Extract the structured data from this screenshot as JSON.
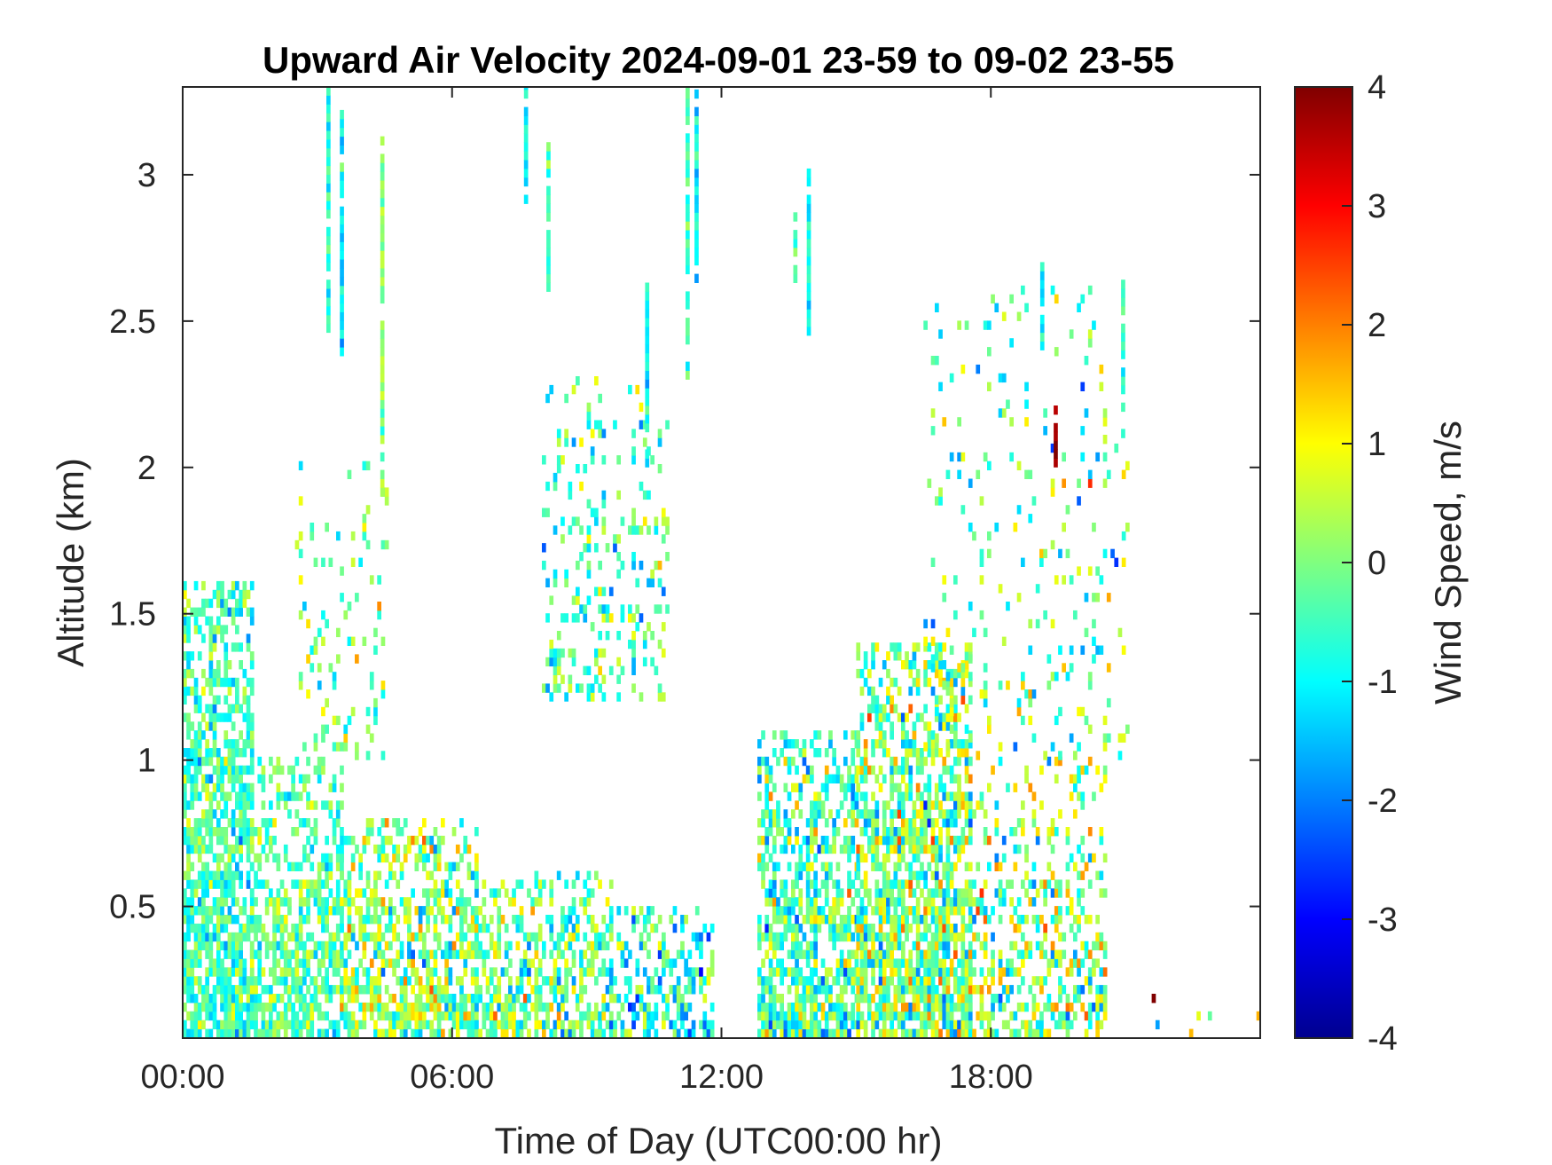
{
  "chart_data": {
    "type": "heatmap",
    "title": "Upward Air Velocity 2024-09-01 23-59 to 09-02 23-55",
    "xlabel": "Time of Day (UTC00:00 hr)",
    "ylabel": "Altitude (km)",
    "x_unit": "hours",
    "xlim": [
      0,
      24
    ],
    "ylim": [
      0.05,
      3.3
    ],
    "x_ticks": [
      0,
      6,
      12,
      18
    ],
    "x_tick_labels": [
      "00:00",
      "06:00",
      "12:00",
      "18:00"
    ],
    "y_ticks": [
      0.5,
      1,
      1.5,
      2,
      2.5,
      3
    ],
    "y_tick_labels": [
      "0.5",
      "1",
      "1.5",
      "2",
      "2.5",
      "3"
    ],
    "colorbar": {
      "label": "Wind Speed, m/s",
      "colormap": "jet",
      "clim": [
        -4,
        4
      ],
      "ticks": [
        -4,
        -3,
        -2,
        -1,
        0,
        1,
        2,
        3,
        4
      ],
      "tick_labels": [
        "-4",
        "-3",
        "-2",
        "-1",
        "0",
        "1",
        "2",
        "3",
        "4"
      ]
    },
    "grid": false,
    "cell_resolution": {
      "x_hours": 0.0833,
      "y_km": 0.03
    },
    "data_regions": [
      {
        "x_range": [
          0,
          1.5
        ],
        "y_range": [
          0.05,
          1.6
        ],
        "density": 0.9,
        "mean": -0.5,
        "spread": 0.6
      },
      {
        "x_range": [
          1.5,
          3.5
        ],
        "y_range": [
          0.05,
          1.0
        ],
        "density": 0.75,
        "mean": -0.3,
        "spread": 0.6
      },
      {
        "x_range": [
          3.5,
          6.5
        ],
        "y_range": [
          0.05,
          0.8
        ],
        "density": 0.7,
        "mean": 0.1,
        "spread": 0.9
      },
      {
        "x_range": [
          6.5,
          9.5
        ],
        "y_range": [
          0.05,
          0.6
        ],
        "density": 0.65,
        "mean": -0.2,
        "spread": 0.9
      },
      {
        "x_range": [
          9.5,
          11.8
        ],
        "y_range": [
          0.05,
          0.5
        ],
        "density": 0.6,
        "mean": -0.7,
        "spread": 0.9
      },
      {
        "x_range": [
          12.8,
          15.0
        ],
        "y_range": [
          0.05,
          1.1
        ],
        "density": 0.8,
        "mean": -0.4,
        "spread": 0.9
      },
      {
        "x_range": [
          15.0,
          17.5
        ],
        "y_range": [
          0.05,
          1.4
        ],
        "density": 0.85,
        "mean": 0.0,
        "spread": 1.0
      },
      {
        "x_range": [
          17.5,
          20.5
        ],
        "y_range": [
          0.05,
          1.0
        ],
        "density": 0.45,
        "mean": 0.1,
        "spread": 1.1
      },
      {
        "x_range": [
          8.0,
          10.8
        ],
        "y_range": [
          1.2,
          2.3
        ],
        "density": 0.25,
        "mean": -0.4,
        "spread": 0.8
      },
      {
        "x_range": [
          2.5,
          4.5
        ],
        "y_range": [
          1.0,
          2.0
        ],
        "density": 0.15,
        "mean": 0.0,
        "spread": 0.7
      },
      {
        "x_range": [
          16.5,
          21.0
        ],
        "y_range": [
          1.0,
          2.6
        ],
        "density": 0.12,
        "mean": -0.2,
        "spread": 1.0
      },
      {
        "x_range": [
          21.0,
          24.0
        ],
        "y_range": [
          0.05,
          0.2
        ],
        "density": 0.05,
        "mean": 0.5,
        "spread": 1.5
      }
    ],
    "streaks": [
      {
        "x": 3.2,
        "y_range": [
          2.4,
          3.3
        ],
        "mean": -0.8
      },
      {
        "x": 3.5,
        "y_range": [
          2.35,
          3.2
        ],
        "mean": -1.0
      },
      {
        "x": 4.4,
        "y_range": [
          1.9,
          3.1
        ],
        "mean": 0.0
      },
      {
        "x": 7.6,
        "y_range": [
          2.9,
          3.3
        ],
        "mean": -0.9
      },
      {
        "x": 8.1,
        "y_range": [
          2.6,
          3.1
        ],
        "mean": -0.6
      },
      {
        "x": 10.3,
        "y_range": [
          2.0,
          2.6
        ],
        "mean": -0.8
      },
      {
        "x": 11.2,
        "y_range": [
          2.3,
          3.3
        ],
        "mean": -0.4
      },
      {
        "x": 11.4,
        "y_range": [
          2.6,
          3.3
        ],
        "mean": -1.0
      },
      {
        "x": 13.6,
        "y_range": [
          2.6,
          2.85
        ],
        "mean": -0.4
      },
      {
        "x": 13.9,
        "y_range": [
          2.45,
          3.0
        ],
        "mean": -0.9
      },
      {
        "x": 19.1,
        "y_range": [
          2.4,
          2.75
        ],
        "mean": -1.1
      },
      {
        "x": 20.9,
        "y_range": [
          2.1,
          2.65
        ],
        "mean": -0.5
      },
      {
        "x": 19.4,
        "y_range": [
          2.0,
          2.2
        ],
        "mean": 3.9
      }
    ]
  }
}
